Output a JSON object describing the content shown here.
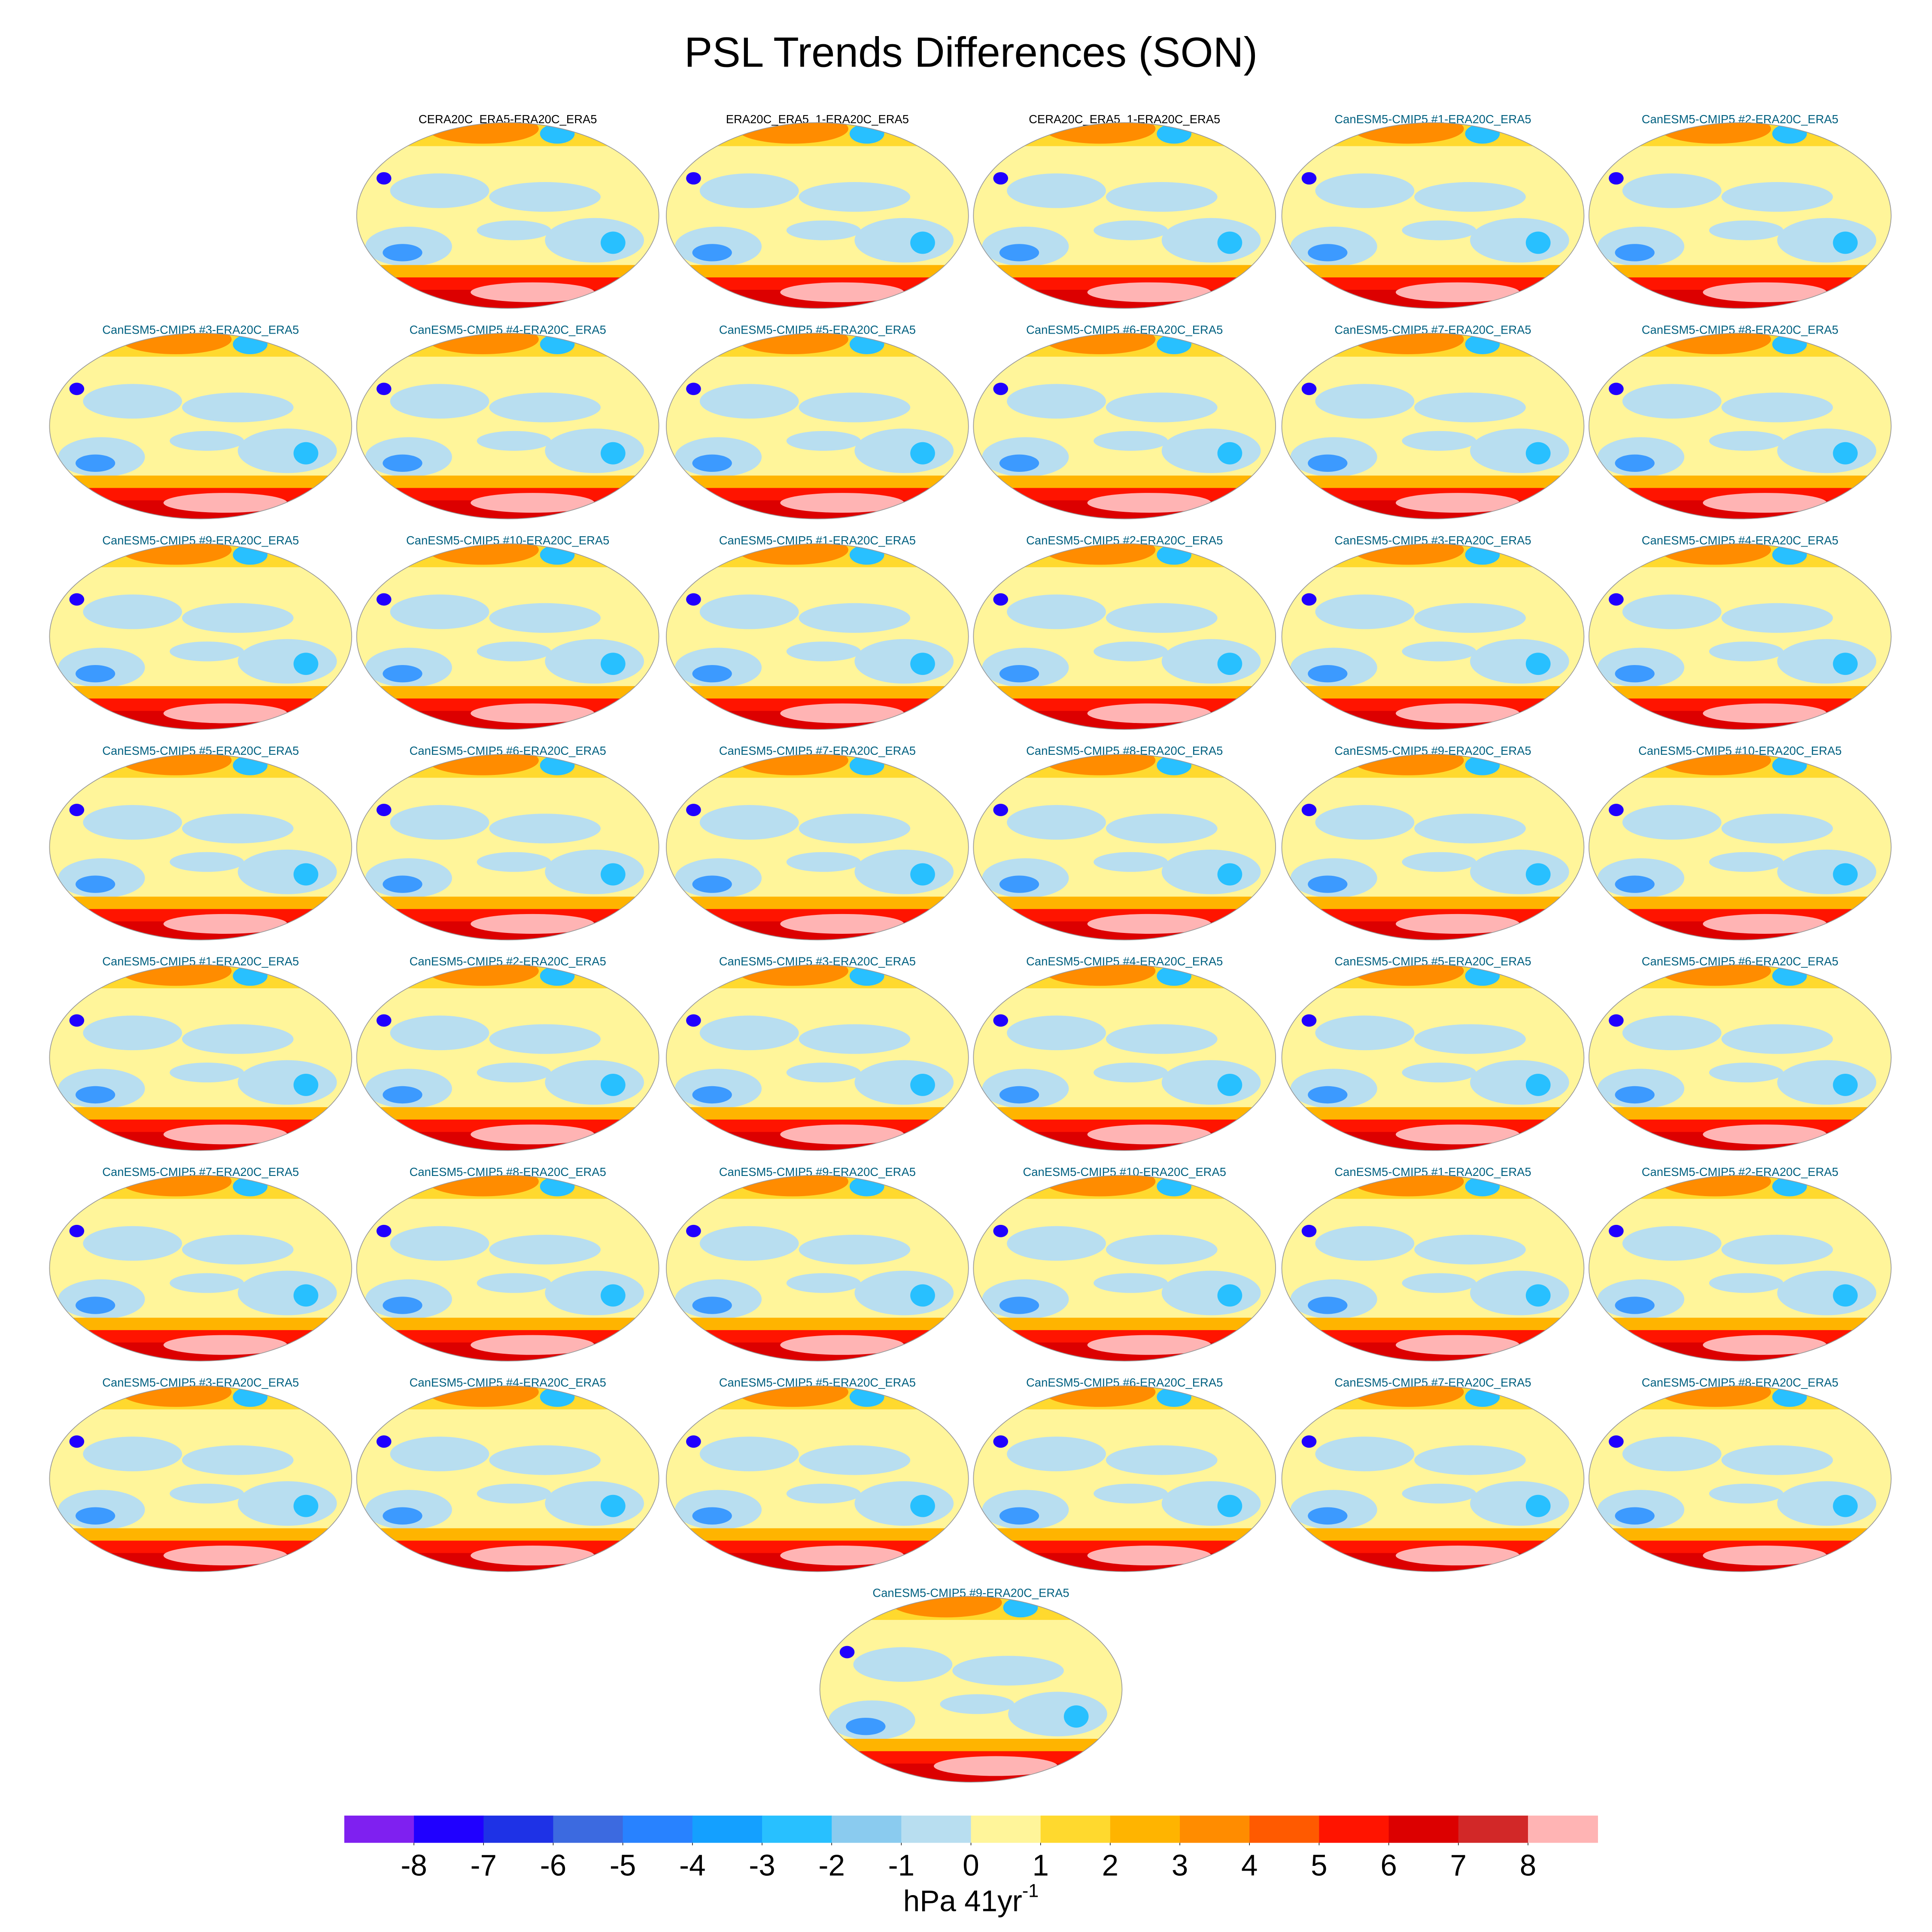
{
  "title": "PSL Trends Differences (SON)",
  "panels": [
    {
      "title": "CERA20C_ERA5-ERA20C_ERA5",
      "title_color": "#000000"
    },
    {
      "title": "ERA20C_ERA5_1-ERA20C_ERA5",
      "title_color": "#000000"
    },
    {
      "title": "CERA20C_ERA5_1-ERA20C_ERA5",
      "title_color": "#000000"
    },
    {
      "title": "CanESM5-CMIP5 #1-ERA20C_ERA5",
      "title_color": "#006080"
    },
    {
      "title": "CanESM5-CMIP5 #2-ERA20C_ERA5",
      "title_color": "#006080"
    },
    {
      "title": "CanESM5-CMIP5 #3-ERA20C_ERA5",
      "title_color": "#006080"
    },
    {
      "title": "CanESM5-CMIP5 #4-ERA20C_ERA5",
      "title_color": "#006080"
    },
    {
      "title": "CanESM5-CMIP5 #5-ERA20C_ERA5",
      "title_color": "#006080"
    },
    {
      "title": "CanESM5-CMIP5 #6-ERA20C_ERA5",
      "title_color": "#006080"
    },
    {
      "title": "CanESM5-CMIP5 #7-ERA20C_ERA5",
      "title_color": "#006080"
    },
    {
      "title": "CanESM5-CMIP5 #8-ERA20C_ERA5",
      "title_color": "#006080"
    },
    {
      "title": "CanESM5-CMIP5 #9-ERA20C_ERA5",
      "title_color": "#006080"
    },
    {
      "title": "CanESM5-CMIP5 #10-ERA20C_ERA5",
      "title_color": "#006080"
    },
    {
      "title": "CanESM5-CMIP5 #1-ERA20C_ERA5",
      "title_color": "#006080"
    },
    {
      "title": "CanESM5-CMIP5 #2-ERA20C_ERA5",
      "title_color": "#006080"
    },
    {
      "title": "CanESM5-CMIP5 #3-ERA20C_ERA5",
      "title_color": "#006080"
    },
    {
      "title": "CanESM5-CMIP5 #4-ERA20C_ERA5",
      "title_color": "#006080"
    },
    {
      "title": "CanESM5-CMIP5 #5-ERA20C_ERA5",
      "title_color": "#006080"
    },
    {
      "title": "CanESM5-CMIP5 #6-ERA20C_ERA5",
      "title_color": "#006080"
    },
    {
      "title": "CanESM5-CMIP5 #7-ERA20C_ERA5",
      "title_color": "#006080"
    },
    {
      "title": "CanESM5-CMIP5 #8-ERA20C_ERA5",
      "title_color": "#006080"
    },
    {
      "title": "CanESM5-CMIP5 #9-ERA20C_ERA5",
      "title_color": "#006080"
    },
    {
      "title": "CanESM5-CMIP5 #10-ERA20C_ERA5",
      "title_color": "#006080"
    },
    {
      "title": "CanESM5-CMIP5 #1-ERA20C_ERA5",
      "title_color": "#006080"
    },
    {
      "title": "CanESM5-CMIP5 #2-ERA20C_ERA5",
      "title_color": "#006080"
    },
    {
      "title": "CanESM5-CMIP5 #3-ERA20C_ERA5",
      "title_color": "#006080"
    },
    {
      "title": "CanESM5-CMIP5 #4-ERA20C_ERA5",
      "title_color": "#006080"
    },
    {
      "title": "CanESM5-CMIP5 #5-ERA20C_ERA5",
      "title_color": "#006080"
    },
    {
      "title": "CanESM5-CMIP5 #6-ERA20C_ERA5",
      "title_color": "#006080"
    },
    {
      "title": "CanESM5-CMIP5 #7-ERA20C_ERA5",
      "title_color": "#006080"
    },
    {
      "title": "CanESM5-CMIP5 #8-ERA20C_ERA5",
      "title_color": "#006080"
    },
    {
      "title": "CanESM5-CMIP5 #9-ERA20C_ERA5",
      "title_color": "#006080"
    },
    {
      "title": "CanESM5-CMIP5 #10-ERA20C_ERA5",
      "title_color": "#006080"
    },
    {
      "title": "CanESM5-CMIP5 #1-ERA20C_ERA5",
      "title_color": "#006080"
    },
    {
      "title": "CanESM5-CMIP5 #2-ERA20C_ERA5",
      "title_color": "#006080"
    },
    {
      "title": "CanESM5-CMIP5 #3-ERA20C_ERA5",
      "title_color": "#006080"
    },
    {
      "title": "CanESM5-CMIP5 #4-ERA20C_ERA5",
      "title_color": "#006080"
    },
    {
      "title": "CanESM5-CMIP5 #5-ERA20C_ERA5",
      "title_color": "#006080"
    },
    {
      "title": "CanESM5-CMIP5 #6-ERA20C_ERA5",
      "title_color": "#006080"
    },
    {
      "title": "CanESM5-CMIP5 #7-ERA20C_ERA5",
      "title_color": "#006080"
    },
    {
      "title": "CanESM5-CMIP5 #8-ERA20C_ERA5",
      "title_color": "#006080"
    },
    {
      "title": "CanESM5-CMIP5 #9-ERA20C_ERA5",
      "title_color": "#006080"
    }
  ],
  "colorbar": {
    "colors": [
      "#7f20f0",
      "#2000ff",
      "#1e32e6",
      "#3c6ae0",
      "#2882ff",
      "#14a0ff",
      "#28c0ff",
      "#8acbef",
      "#b8def0",
      "#fff59a",
      "#ffd92e",
      "#ffb400",
      "#ff8c00",
      "#ff5a00",
      "#ff1400",
      "#dc0000",
      "#d22828",
      "#ffb4b4"
    ],
    "ticks": [
      -8,
      -7,
      -6,
      -5,
      -4,
      -3,
      -2,
      -1,
      0,
      1,
      2,
      3,
      4,
      5,
      6,
      7,
      8
    ],
    "unit": "hPa 41yr",
    "unit_exponent": "-1"
  }
}
